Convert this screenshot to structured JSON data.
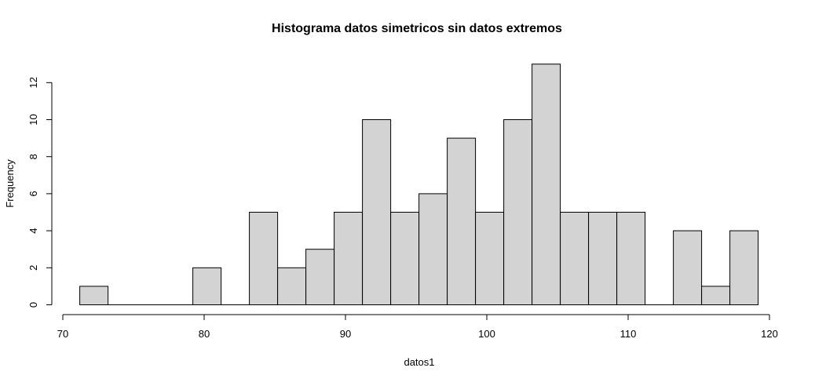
{
  "chart_data": {
    "type": "bar",
    "title": "Histograma datos simetricos sin datos extremos",
    "xlabel": "datos1",
    "ylabel": "Frequency",
    "xlim": [
      70,
      120
    ],
    "ylim": [
      0,
      13
    ],
    "x_ticks": [
      70,
      80,
      90,
      100,
      110,
      120
    ],
    "y_ticks": [
      0,
      2,
      4,
      6,
      8,
      10,
      12
    ],
    "bins": [
      {
        "x0": 71.2,
        "x1": 73.2,
        "count": 1
      },
      {
        "x0": 73.2,
        "x1": 75.2,
        "count": 0
      },
      {
        "x0": 75.2,
        "x1": 77.2,
        "count": 0
      },
      {
        "x0": 77.2,
        "x1": 79.2,
        "count": 0
      },
      {
        "x0": 79.2,
        "x1": 81.2,
        "count": 2
      },
      {
        "x0": 81.2,
        "x1": 83.2,
        "count": 0
      },
      {
        "x0": 83.2,
        "x1": 85.2,
        "count": 5
      },
      {
        "x0": 85.2,
        "x1": 87.2,
        "count": 2
      },
      {
        "x0": 87.2,
        "x1": 89.2,
        "count": 3
      },
      {
        "x0": 89.2,
        "x1": 91.2,
        "count": 5
      },
      {
        "x0": 91.2,
        "x1": 93.2,
        "count": 10
      },
      {
        "x0": 93.2,
        "x1": 95.2,
        "count": 5
      },
      {
        "x0": 95.2,
        "x1": 97.2,
        "count": 6
      },
      {
        "x0": 97.2,
        "x1": 99.2,
        "count": 9
      },
      {
        "x0": 99.2,
        "x1": 101.2,
        "count": 5
      },
      {
        "x0": 101.2,
        "x1": 103.2,
        "count": 10
      },
      {
        "x0": 103.2,
        "x1": 105.2,
        "count": 13
      },
      {
        "x0": 105.2,
        "x1": 107.2,
        "count": 5
      },
      {
        "x0": 107.2,
        "x1": 109.2,
        "count": 5
      },
      {
        "x0": 109.2,
        "x1": 111.2,
        "count": 5
      },
      {
        "x0": 111.2,
        "x1": 113.2,
        "count": 0
      },
      {
        "x0": 113.2,
        "x1": 115.2,
        "count": 4
      },
      {
        "x0": 115.2,
        "x1": 117.2,
        "count": 1
      },
      {
        "x0": 117.2,
        "x1": 119.2,
        "count": 4
      }
    ],
    "bar_fill": "#d3d3d3",
    "bar_stroke": "#000000",
    "grid": false,
    "legend": "none"
  }
}
